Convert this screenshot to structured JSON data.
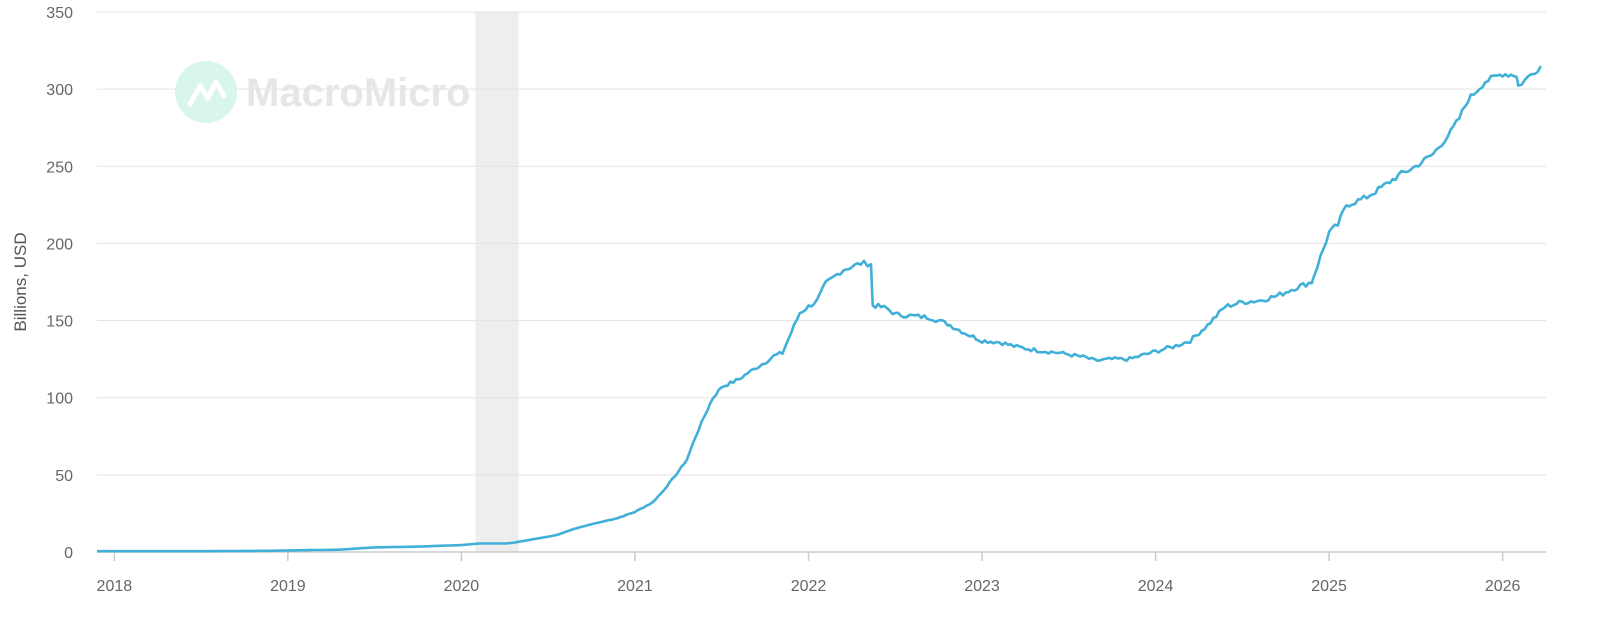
{
  "watermark": {
    "text": "MacroMicro",
    "icon": "macromicro-logo-icon"
  },
  "colors": {
    "line": "#41b0d8",
    "grid": "#e3e3e3",
    "axis": "#cccccc",
    "shade": "#eeeeee",
    "logo_circle": "#d8f5ee",
    "logo_mark": "#ffffff"
  },
  "chart_data": {
    "type": "line",
    "title": "",
    "xlabel": "",
    "ylabel": "Billions, USD",
    "ylim": [
      0,
      350
    ],
    "xlim": [
      2017.9,
      2026.25
    ],
    "grid": true,
    "yticks": [
      0,
      50,
      100,
      150,
      200,
      250,
      300,
      350
    ],
    "xticks": [
      "2018",
      "2019",
      "2020",
      "2021",
      "2022",
      "2023",
      "2024",
      "2025",
      "2026"
    ],
    "shaded_regions": [
      {
        "from": 2020.08,
        "to": 2020.33
      }
    ],
    "series": [
      {
        "x": [
          2017.9,
          2018.5,
          2018.9,
          2019.0,
          2019.3,
          2019.5,
          2019.75,
          2020.0,
          2020.1,
          2020.25,
          2020.3,
          2020.4,
          2020.55,
          2020.65,
          2020.75,
          2020.9,
          2021.0,
          2021.1,
          2021.15,
          2021.25,
          2021.3,
          2021.35,
          2021.4,
          2021.45,
          2021.5,
          2021.6,
          2021.65,
          2021.75,
          2021.8,
          2021.85,
          2021.9,
          2021.95,
          2022.05,
          2022.1,
          2022.2,
          2022.3,
          2022.36,
          2022.37,
          2022.45,
          2022.5,
          2022.6,
          2022.7,
          2022.8,
          2022.9,
          2023.0,
          2023.1,
          2023.2,
          2023.3,
          2023.45,
          2023.6,
          2023.65,
          2023.75,
          2023.85,
          2024.0,
          2024.1,
          2024.2,
          2024.3,
          2024.4,
          2024.5,
          2024.6,
          2024.7,
          2024.8,
          2024.9,
          2025.0,
          2025.05,
          2025.1,
          2025.2,
          2025.3,
          2025.4,
          2025.5,
          2025.6,
          2025.7,
          2025.75,
          2025.8,
          2025.9,
          2026.0,
          2026.08,
          2026.09,
          2026.15,
          2026.22
        ],
        "values": [
          0.5,
          0.5,
          0.8,
          1.0,
          1.5,
          3.0,
          3.5,
          4.5,
          5.5,
          5.5,
          6.0,
          8.0,
          11.0,
          15.0,
          18.0,
          22.0,
          26.0,
          32.0,
          38.0,
          52.0,
          60.0,
          75.0,
          88.0,
          100.0,
          107.0,
          112.0,
          116.0,
          123.0,
          127.0,
          129.0,
          142.0,
          155.0,
          163.0,
          174.0,
          183.0,
          187.0,
          187.0,
          160.0,
          158.0,
          154.0,
          153.0,
          152.0,
          148.0,
          142.0,
          137.0,
          136.0,
          133.0,
          131.0,
          129.0,
          126.0,
          124.0,
          125.0,
          125.0,
          130.0,
          133.0,
          137.0,
          147.0,
          159.0,
          162.0,
          163.0,
          166.0,
          171.0,
          175.0,
          207.0,
          212.0,
          225.0,
          229.0,
          236.0,
          244.0,
          250.0,
          258.0,
          272.0,
          281.0,
          293.0,
          305.0,
          310.0,
          309.0,
          302.0,
          308.0,
          315.0
        ]
      }
    ]
  }
}
